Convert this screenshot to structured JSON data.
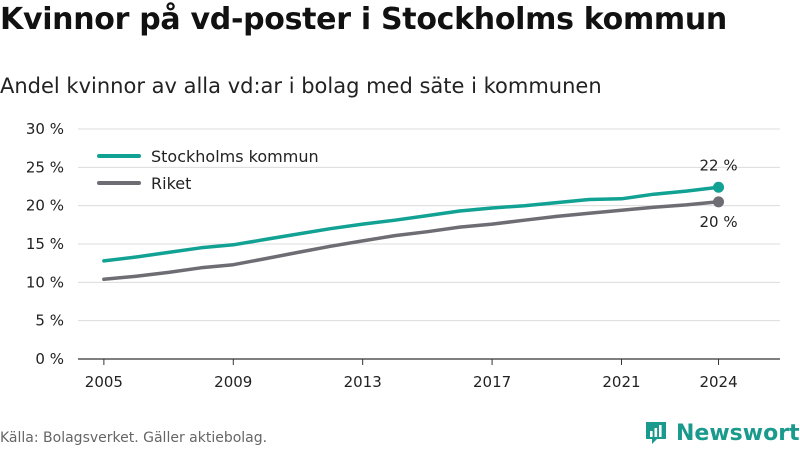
{
  "title": "Kvinnor på vd-poster i Stockholms kommun",
  "subtitle": "Andel kvinnor av alla vd:ar i bolag med säte i kommunen",
  "source": "Källa: Bolagsverket. Gäller aktiebolag.",
  "brand": "Newsworthy",
  "chart_data": {
    "type": "line",
    "title": "Kvinnor på vd-poster i Stockholms kommun",
    "subtitle": "Andel kvinnor av alla vd:ar i bolag med säte i kommunen",
    "x": [
      2005,
      2006,
      2007,
      2008,
      2009,
      2010,
      2011,
      2012,
      2013,
      2014,
      2015,
      2016,
      2017,
      2018,
      2019,
      2020,
      2021,
      2022,
      2023,
      2024
    ],
    "x_ticks": [
      "2005",
      "2009",
      "2013",
      "2017",
      "2021",
      "2024"
    ],
    "y_ticks": [
      "0 %",
      "5 %",
      "10 %",
      "15 %",
      "20 %",
      "25 %",
      "30 %"
    ],
    "ylim": [
      0,
      30
    ],
    "grid": "horizontal",
    "legend_position": "top-left",
    "series": [
      {
        "name": "Stockholms kommun",
        "color": "#12a294",
        "values": [
          12.8,
          13.3,
          13.9,
          14.5,
          14.9,
          15.6,
          16.3,
          17.0,
          17.6,
          18.1,
          18.7,
          19.3,
          19.7,
          20.0,
          20.4,
          20.8,
          20.9,
          21.5,
          21.9,
          22.4
        ],
        "end_label": "22 %"
      },
      {
        "name": "Riket",
        "color": "#6e6d73",
        "values": [
          10.4,
          10.8,
          11.3,
          11.9,
          12.3,
          13.1,
          13.9,
          14.7,
          15.4,
          16.1,
          16.6,
          17.2,
          17.6,
          18.1,
          18.6,
          19.0,
          19.4,
          19.8,
          20.1,
          20.5
        ],
        "end_label": "20 %"
      }
    ]
  }
}
